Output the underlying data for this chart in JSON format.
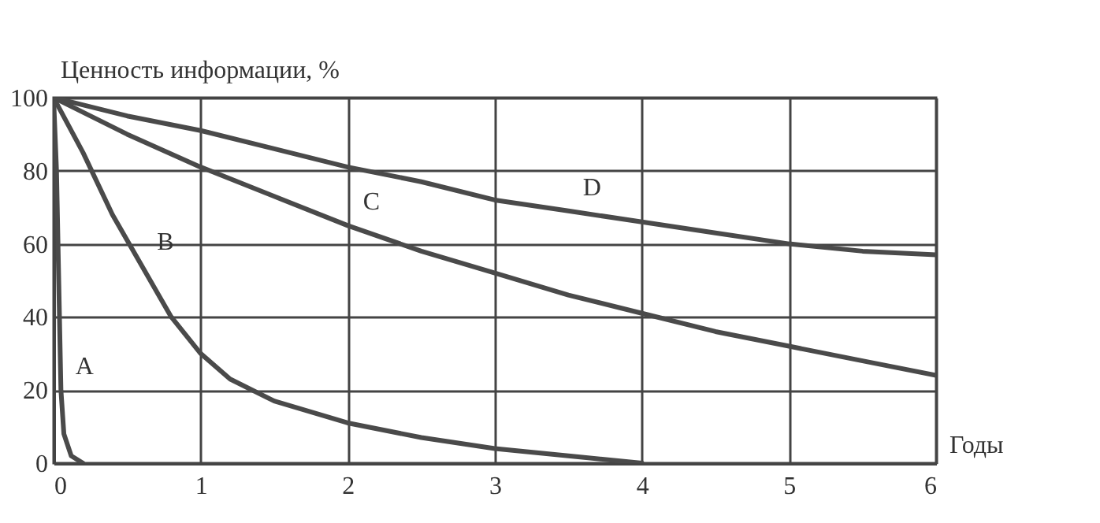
{
  "chart_data": {
    "type": "line",
    "xlabel": "Годы",
    "ylabel": "Ценность информации, %",
    "xlim": [
      0,
      6
    ],
    "ylim": [
      0,
      100
    ],
    "xticks": [
      0,
      1,
      2,
      3,
      4,
      5,
      6
    ],
    "yticks": [
      0,
      20,
      40,
      60,
      80,
      100
    ],
    "grid": true,
    "line_style": "solid",
    "series": [
      {
        "color": "#4a4a4a",
        "x": [
          0,
          0.02,
          0.04,
          0.05,
          0.07,
          0.12,
          0.2
        ],
        "values": [
          100,
          80,
          40,
          20,
          8,
          2,
          0
        ]
      },
      {
        "color": "#4a4a4a",
        "x": [
          0,
          0.2,
          0.4,
          0.6,
          0.8,
          1,
          1.2,
          1.5,
          2,
          2.5,
          3,
          3.5,
          4
        ],
        "values": [
          100,
          85,
          68,
          54,
          40,
          30,
          23,
          17,
          11,
          7,
          4,
          2,
          0
        ]
      },
      {
        "color": "#4a4a4a",
        "x": [
          0,
          0.5,
          1,
          1.5,
          2,
          2.5,
          3,
          3.5,
          4,
          4.5,
          5,
          5.5,
          6
        ],
        "values": [
          100,
          90,
          81,
          73,
          65,
          58,
          52,
          46,
          41,
          36,
          32,
          28,
          24
        ]
      },
      {
        "color": "#4a4a4a",
        "x": [
          0,
          0.5,
          1,
          1.5,
          2,
          2.5,
          3,
          3.5,
          4,
          4.5,
          5,
          5.5,
          6
        ],
        "values": [
          100,
          95,
          91,
          86,
          81,
          77,
          72,
          69,
          66,
          63,
          60,
          58,
          57
        ]
      }
    ],
    "annotations": [
      {
        "text": "A",
        "x": 0.05,
        "y": 20
      },
      {
        "text": "B",
        "x": 0.6,
        "y": 54
      },
      {
        "text": "C",
        "x": 2,
        "y": 65
      },
      {
        "text": "D",
        "x": 3.5,
        "y": 69
      }
    ]
  }
}
